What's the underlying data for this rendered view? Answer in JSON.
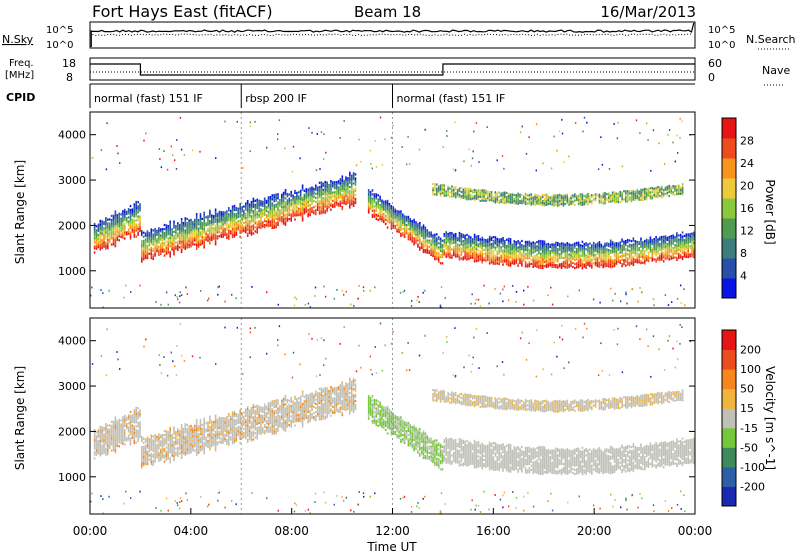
{
  "header": {
    "station": "Fort Hays East (fitACF)",
    "beam": "Beam 18",
    "date": "16/Mar/2013"
  },
  "top_panels": {
    "nsky_label": "N.Sky",
    "nsky_ticks": [
      "10^5",
      "10^0"
    ],
    "nsearch_label": "N.Search",
    "nsearch_ticks": [
      "10^5",
      "10^0"
    ],
    "freq_label_1": "Freq.",
    "freq_label_2": "[MHz]",
    "freq_ticks": [
      "18",
      "8"
    ],
    "nave_label": "Nave",
    "nave_ticks": [
      "60",
      "0"
    ],
    "cpid_label": "CPID",
    "cpid_segments": [
      {
        "label": "normal (fast) 151 IF",
        "start_hour": 0,
        "end_hour": 6
      },
      {
        "label": "rbsp 200 IF",
        "start_hour": 6,
        "end_hour": 12
      },
      {
        "label": "normal (fast) 151 IF",
        "start_hour": 12,
        "end_hour": 24
      }
    ]
  },
  "chart_data": [
    {
      "type": "heatmap",
      "title": "Power",
      "ylabel": "Slant Range [km]",
      "xlabel": "Time UT",
      "xlim": [
        0,
        24
      ],
      "ylim": [
        180,
        4500
      ],
      "yticks": [
        "1000",
        "2000",
        "3000",
        "4000"
      ],
      "colorbar_label": "Power [dB]",
      "colorbar_ticks": [
        "4",
        "8",
        "12",
        "16",
        "20",
        "24",
        "28"
      ],
      "colorbar_colors": [
        "#0a14e6",
        "#2a4fa8",
        "#3c7d7d",
        "#4f9b4f",
        "#8cc83c",
        "#f0c83c",
        "#f7941d",
        "#ee4b1e",
        "#e61414"
      ],
      "features": [
        {
          "name": "lower band",
          "start_hour": 0.2,
          "end_hour": 10.5,
          "range_start_km": 1600,
          "range_end_km": 3050
        },
        {
          "name": "morning echo",
          "start_hour": 11.5,
          "end_hour": 23.9,
          "range_start_km": 1300,
          "range_end_km": 1700
        },
        {
          "name": "upper band",
          "start_hour": 14.5,
          "end_hour": 23.5,
          "range_start_km": 2600,
          "range_end_km": 2800
        }
      ]
    },
    {
      "type": "heatmap",
      "title": "Velocity",
      "ylabel": "Slant Range [km]",
      "xlabel": "Time UT",
      "xlim": [
        0,
        24
      ],
      "ylim": [
        180,
        4500
      ],
      "yticks": [
        "1000",
        "2000",
        "3000",
        "4000"
      ],
      "colorbar_label": "Velocity [m s^-1]",
      "colorbar_ticks": [
        "200",
        "100",
        "50",
        "15",
        "-15",
        "-50",
        "-100",
        "-200"
      ],
      "colorbar_colors": [
        "#1a2ab0",
        "#2e5fa6",
        "#3f8a5c",
        "#74c83c",
        "#c0c0b8",
        "#f0b43c",
        "#f7871d",
        "#ee4b1e",
        "#e61414"
      ]
    }
  ],
  "xaxis": {
    "ticks": [
      "00:00",
      "04:00",
      "08:00",
      "12:00",
      "16:00",
      "20:00",
      "00:00"
    ],
    "label": "Time UT"
  }
}
